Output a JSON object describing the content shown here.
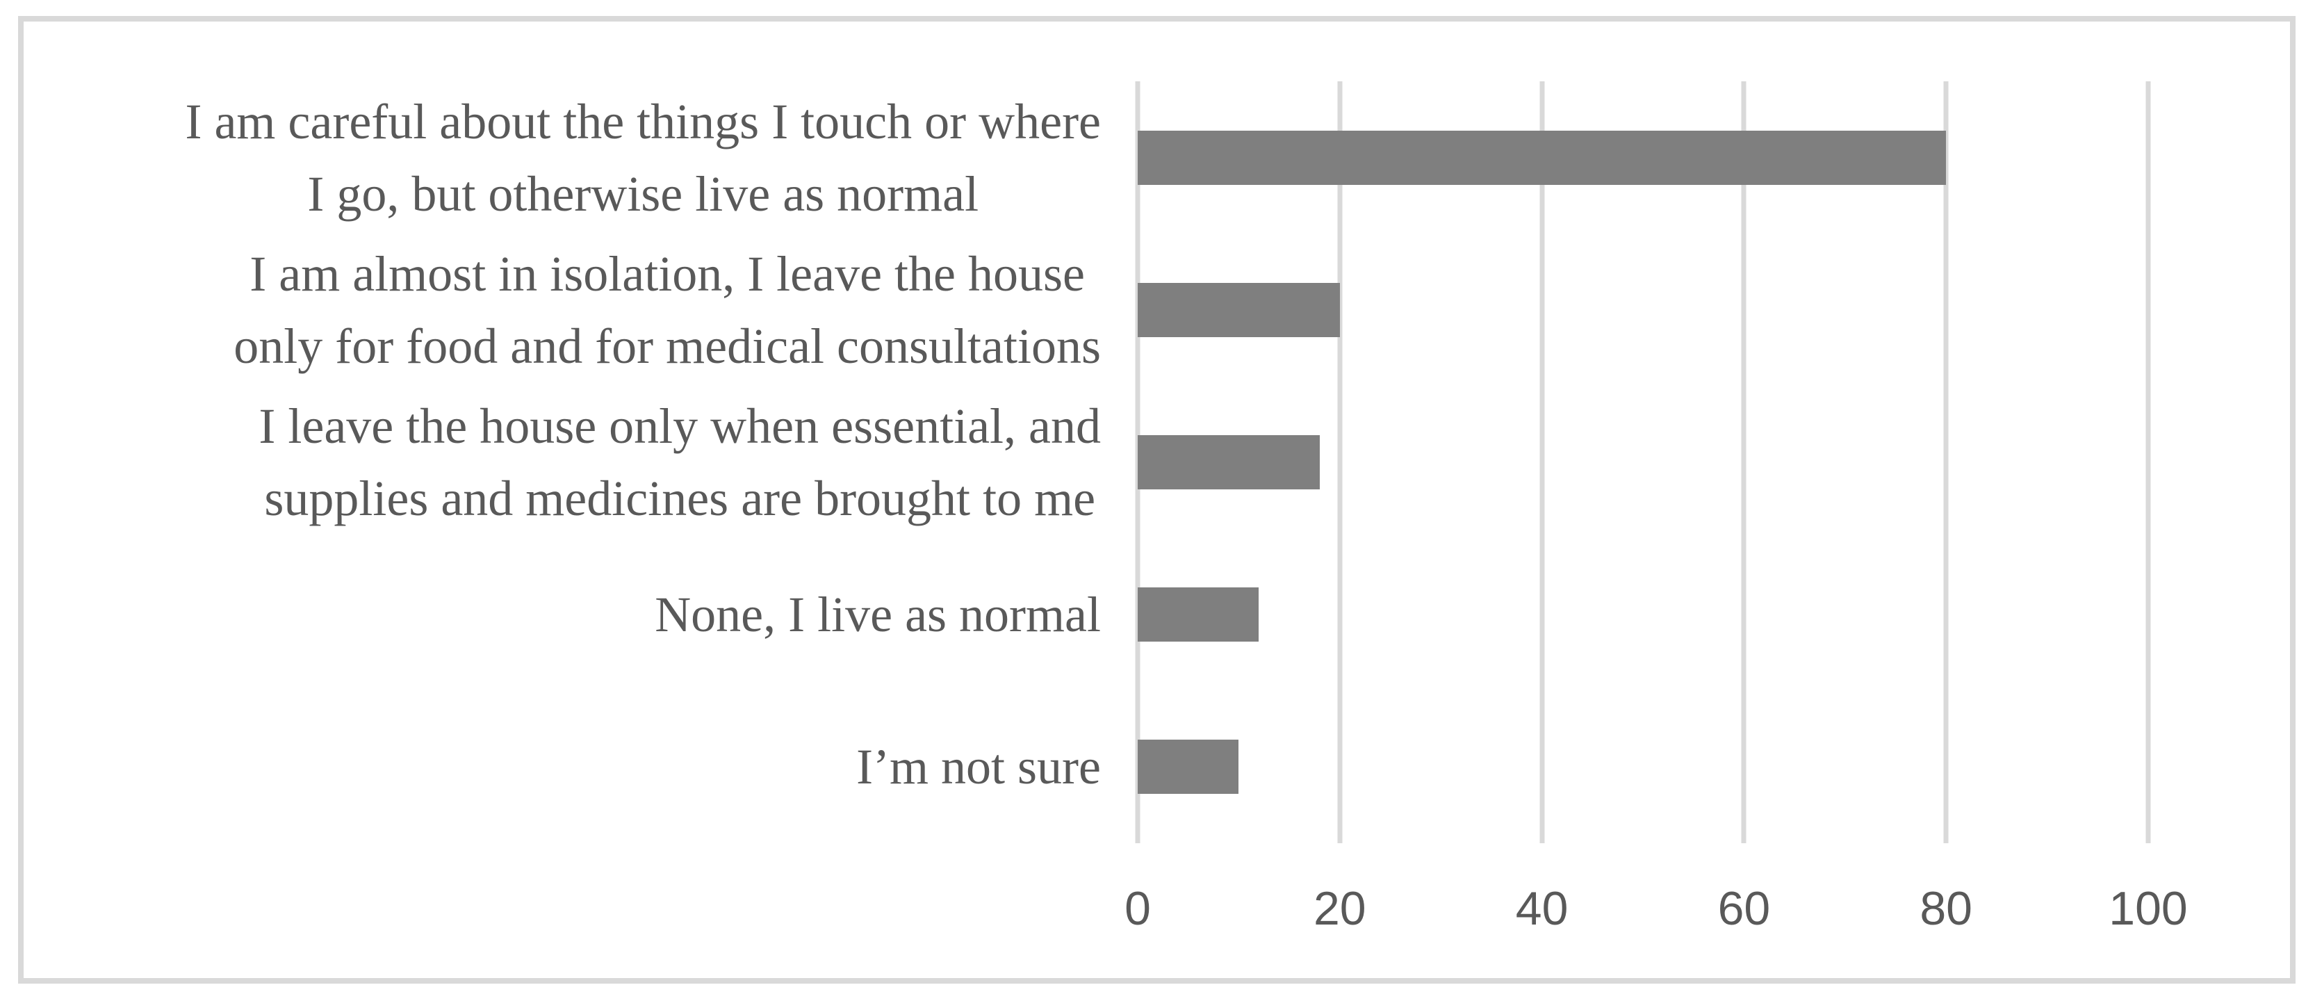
{
  "figure": {
    "background_color": "#ffffff",
    "frame_color": "#d9d9d9",
    "gridline_color": "#d9d9d9",
    "bar_color": "#7f7f7f",
    "text_color": "#595959"
  },
  "chart_data": {
    "type": "bar",
    "orientation": "horizontal",
    "title": "",
    "xlabel": "",
    "ylabel": "",
    "grid": true,
    "xlim": [
      0,
      100
    ],
    "xticks": [
      0,
      20,
      40,
      60,
      80,
      100
    ],
    "categories": [
      "I am careful about the things I touch or where I go, but otherwise live as normal",
      "I am almost in isolation, I leave the house only for food and for medical consultations",
      "I leave the house only when essential, and supplies and medicines are brought to me",
      "None, I live as normal",
      "I’m not sure"
    ],
    "label_lines": [
      [
        "I am careful about the things I touch or where",
        "I go, but otherwise live as normal"
      ],
      [
        "I am almost in isolation, I leave the house",
        "only for food and for medical consultations"
      ],
      [
        "I leave the house only when essential, and",
        "supplies and medicines are brought to me"
      ],
      [
        "None, I live as normal"
      ],
      [
        "I’m not sure"
      ]
    ],
    "values": [
      80,
      20,
      18,
      12,
      10
    ]
  }
}
